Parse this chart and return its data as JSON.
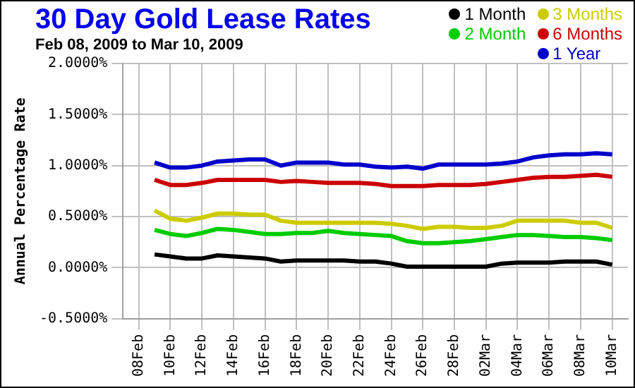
{
  "chart_data": {
    "type": "line",
    "title": "30 Day Gold Lease Rates",
    "subtitle": "Feb 08, 2009 to Mar 10, 2009",
    "ylabel": "Annual Percentage Rate",
    "x": [
      "2009-02-09",
      "2009-02-10",
      "2009-02-11",
      "2009-02-12",
      "2009-02-13",
      "2009-02-14",
      "2009-02-15",
      "2009-02-16",
      "2009-02-17",
      "2009-02-18",
      "2009-02-19",
      "2009-02-20",
      "2009-02-21",
      "2009-02-22",
      "2009-02-23",
      "2009-02-24",
      "2009-02-25",
      "2009-02-26",
      "2009-02-27",
      "2009-02-28",
      "2009-03-01",
      "2009-03-02",
      "2009-03-03",
      "2009-03-04",
      "2009-03-05",
      "2009-03-06",
      "2009-03-07",
      "2009-03-08",
      "2009-03-09",
      "2009-03-10"
    ],
    "series": [
      {
        "name": "1 Month",
        "color": "#000000",
        "values": [
          0.13,
          0.11,
          0.09,
          0.09,
          0.12,
          0.11,
          0.1,
          0.09,
          0.06,
          0.07,
          0.07,
          0.07,
          0.07,
          0.06,
          0.06,
          0.04,
          0.01,
          0.01,
          0.01,
          0.01,
          0.01,
          0.01,
          0.04,
          0.05,
          0.05,
          0.05,
          0.06,
          0.06,
          0.06,
          0.03
        ]
      },
      {
        "name": "2 Month",
        "color": "#00cc00",
        "values": [
          0.37,
          0.33,
          0.31,
          0.34,
          0.38,
          0.37,
          0.35,
          0.33,
          0.33,
          0.34,
          0.34,
          0.36,
          0.34,
          0.33,
          0.32,
          0.31,
          0.26,
          0.24,
          0.24,
          0.25,
          0.26,
          0.28,
          0.3,
          0.32,
          0.32,
          0.31,
          0.3,
          0.3,
          0.29,
          0.27
        ]
      },
      {
        "name": "3 Months",
        "color": "#cccc00",
        "values": [
          0.56,
          0.48,
          0.46,
          0.49,
          0.53,
          0.53,
          0.52,
          0.52,
          0.46,
          0.44,
          0.44,
          0.44,
          0.44,
          0.44,
          0.44,
          0.43,
          0.41,
          0.38,
          0.4,
          0.4,
          0.39,
          0.39,
          0.41,
          0.46,
          0.46,
          0.46,
          0.46,
          0.44,
          0.44,
          0.39
        ]
      },
      {
        "name": "6 Months",
        "color": "#cc0000",
        "values": [
          0.86,
          0.81,
          0.81,
          0.83,
          0.86,
          0.86,
          0.86,
          0.86,
          0.84,
          0.85,
          0.84,
          0.83,
          0.83,
          0.83,
          0.82,
          0.8,
          0.8,
          0.8,
          0.81,
          0.81,
          0.81,
          0.82,
          0.84,
          0.86,
          0.88,
          0.89,
          0.89,
          0.9,
          0.91,
          0.89
        ]
      },
      {
        "name": "1 Year",
        "color": "#0000cc",
        "values": [
          1.03,
          0.98,
          0.98,
          1.0,
          1.04,
          1.05,
          1.06,
          1.06,
          1.0,
          1.03,
          1.03,
          1.03,
          1.01,
          1.01,
          0.99,
          0.98,
          0.99,
          0.97,
          1.01,
          1.01,
          1.01,
          1.01,
          1.02,
          1.04,
          1.08,
          1.1,
          1.11,
          1.11,
          1.12,
          1.11
        ]
      }
    ],
    "xlim": [
      "2009-02-07",
      "2009-03-11"
    ],
    "xticks": [
      {
        "value": "2009-02-08",
        "label": "08Feb"
      },
      {
        "value": "2009-02-10",
        "label": "10Feb"
      },
      {
        "value": "2009-02-12",
        "label": "12Feb"
      },
      {
        "value": "2009-02-14",
        "label": "14Feb"
      },
      {
        "value": "2009-02-16",
        "label": "16Feb"
      },
      {
        "value": "2009-02-18",
        "label": "18Feb"
      },
      {
        "value": "2009-02-20",
        "label": "20Feb"
      },
      {
        "value": "2009-02-22",
        "label": "22Feb"
      },
      {
        "value": "2009-02-24",
        "label": "24Feb"
      },
      {
        "value": "2009-02-26",
        "label": "26Feb"
      },
      {
        "value": "2009-02-28",
        "label": "28Feb"
      },
      {
        "value": "2009-03-02",
        "label": "02Mar"
      },
      {
        "value": "2009-03-04",
        "label": "04Mar"
      },
      {
        "value": "2009-03-06",
        "label": "06Mar"
      },
      {
        "value": "2009-03-08",
        "label": "08Mar"
      },
      {
        "value": "2009-03-10",
        "label": "10Mar"
      }
    ],
    "ylim": [
      -0.5,
      2
    ],
    "yticks": [
      {
        "value": -0.5,
        "label": "-0.5000%"
      },
      {
        "value": 0,
        "label": "0.0000%"
      },
      {
        "value": 0.5,
        "label": "0.5000%"
      },
      {
        "value": 1,
        "label": "1.0000%"
      },
      {
        "value": 1.5,
        "label": "1.5000%"
      },
      {
        "value": 2,
        "label": "2.0000%"
      }
    ],
    "grid": true,
    "legend": "top right"
  }
}
